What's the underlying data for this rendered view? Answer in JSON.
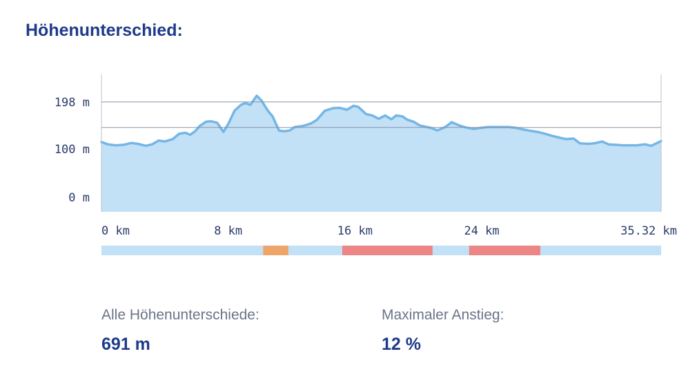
{
  "title": "Höhenunterschied:",
  "chart_data": {
    "type": "area",
    "title": "Höhenunterschied:",
    "xlabel": "",
    "ylabel": "",
    "x_unit": "km",
    "y_unit": "m",
    "xlim": [
      0,
      35.32
    ],
    "ylim": [
      -30,
      255
    ],
    "yticks": [
      {
        "value": 198,
        "label": "198 m"
      },
      {
        "value": 100,
        "label": "100 m"
      },
      {
        "value": 0,
        "label": "0 m"
      }
    ],
    "xticks": [
      {
        "value": 0,
        "label": "0 km"
      },
      {
        "value": 8,
        "label": "8 km"
      },
      {
        "value": 16,
        "label": "16 km"
      },
      {
        "value": 24,
        "label": "24 km"
      },
      {
        "value": 35.32,
        "label": "35.32 km"
      }
    ],
    "gridlines": [
      198,
      145
    ],
    "colors": {
      "fill": "#c2e0f6",
      "line": "#74b6e6",
      "grid": "#8a93a6"
    },
    "series": [
      {
        "x": [
          0,
          0.4,
          0.9,
          1.4,
          1.9,
          2.3,
          2.8,
          3.2,
          3.6,
          4.0,
          4.5,
          4.9,
          5.3,
          5.6,
          5.9,
          6.2,
          6.6,
          6.9,
          7.3,
          7.7,
          8.0,
          8.4,
          8.8,
          9.1,
          9.4,
          9.8,
          10.1,
          10.5,
          10.8,
          11.2,
          11.5,
          11.9,
          12.2,
          12.7,
          13.2,
          13.6,
          14.1,
          14.6,
          15.0,
          15.5,
          15.9,
          16.2,
          16.7,
          17.1,
          17.5,
          17.9,
          18.3,
          18.6,
          19.0,
          19.3,
          19.7,
          20.1,
          20.4,
          20.8,
          21.2,
          21.7,
          22.1,
          22.6,
          23.0,
          23.5,
          23.9,
          24.4,
          24.8,
          25.3,
          25.7,
          26.2,
          26.6,
          27.1,
          27.5,
          28.0,
          28.4,
          28.9,
          29.3,
          29.8,
          30.2,
          30.7,
          31.1,
          31.6,
          32.0,
          32.5,
          32.9,
          33.4,
          33.8,
          34.3,
          34.7,
          35.32
        ],
        "y": [
          115,
          110,
          108,
          109,
          113,
          111,
          107,
          110,
          118,
          116,
          121,
          132,
          134,
          130,
          137,
          148,
          157,
          158,
          155,
          136,
          152,
          180,
          192,
          196,
          192,
          211,
          201,
          180,
          168,
          139,
          137,
          139,
          146,
          148,
          153,
          161,
          180,
          185,
          186,
          182,
          190,
          188,
          173,
          170,
          163,
          170,
          162,
          170,
          168,
          161,
          157,
          149,
          147,
          144,
          139,
          146,
          156,
          149,
          145,
          142,
          144,
          146,
          146,
          146,
          146,
          144,
          141,
          138,
          136,
          132,
          128,
          124,
          121,
          122,
          112,
          111,
          112,
          116,
          110,
          109,
          108,
          108,
          108,
          110,
          107,
          117
        ]
      }
    ],
    "gradient_bar": [
      {
        "from": 0,
        "to": 10.2,
        "color": "#c2e0f6"
      },
      {
        "from": 10.2,
        "to": 11.8,
        "color": "#eea56a"
      },
      {
        "from": 11.8,
        "to": 15.2,
        "color": "#c2e0f6"
      },
      {
        "from": 15.2,
        "to": 20.9,
        "color": "#ec8585"
      },
      {
        "from": 20.9,
        "to": 23.2,
        "color": "#c2e0f6"
      },
      {
        "from": 23.2,
        "to": 27.7,
        "color": "#ec8585"
      },
      {
        "from": 27.7,
        "to": 35.32,
        "color": "#c2e0f6"
      }
    ]
  },
  "stats": {
    "total_label": "Alle Höhenunterschiede:",
    "total_value": "691 m",
    "max_label": "Maximaler Anstieg:",
    "max_value": "12 %"
  }
}
